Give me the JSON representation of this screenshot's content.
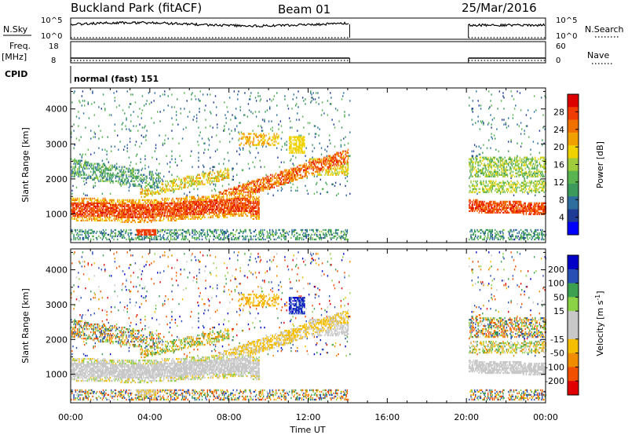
{
  "header": {
    "station_title": "Buckland Park (fitACF)",
    "beam_label": "Beam 01",
    "date_label": "25/Mar/2016"
  },
  "aux_panels": {
    "nsky": {
      "left_label": "N.Sky",
      "right_label": "N.Search",
      "left_ticks": [
        "10^5",
        "10^0"
      ],
      "right_ticks": [
        "10^5",
        "10^0"
      ]
    },
    "freq": {
      "left_label": "Freq.",
      "left_unit": "[MHz]",
      "right_label": "Nave",
      "left_ticks": [
        "18",
        "8"
      ],
      "right_ticks": [
        "60",
        "0"
      ]
    },
    "cpid": {
      "label": "CPID",
      "value": "normal (fast) 151"
    }
  },
  "colors": {
    "power": [
      "#0000ff",
      "#1e3c96",
      "#2e6e9e",
      "#3c9a5c",
      "#5ab450",
      "#a0cc3c",
      "#f0d200",
      "#f0a000",
      "#f07000",
      "#f03c00",
      "#dc0000"
    ],
    "velocity": [
      "#e10000",
      "#f05000",
      "#f08c00",
      "#f5be00",
      "#c8c8c8",
      "#c8c8c8",
      "#8cd246",
      "#3ca050",
      "#2850b4",
      "#0000c8"
    ]
  },
  "chart_data": [
    {
      "type": "heatmap",
      "name": "power",
      "ylabel": "Slant Range [km]",
      "yticks": [
        1000,
        2000,
        3000,
        4000
      ],
      "ylim": [
        180,
        4600
      ],
      "xlim": [
        0,
        24
      ],
      "colorbar": {
        "label": "Power [dB]",
        "range": [
          0,
          32
        ],
        "ticks": [
          4,
          8,
          12,
          16,
          20,
          24,
          28
        ]
      },
      "data_gap": [
        14.1,
        20.1
      ],
      "echo_regions": [
        {
          "desc": "near-range band",
          "t": [
            0,
            14
          ],
          "range": [
            200,
            520
          ],
          "value": 10
        },
        {
          "desc": "main F-region band",
          "t": [
            0,
            9
          ],
          "range": [
            880,
            1400
          ],
          "value": 28
        },
        {
          "desc": "rising band",
          "t": [
            8,
            14
          ],
          "range": [
            1400,
            2700
          ],
          "value": 24
        },
        {
          "desc": "upper scatter",
          "t": [
            0,
            4
          ],
          "range": [
            2000,
            2700
          ],
          "value": 8
        },
        {
          "desc": "evening band",
          "t": [
            20.1,
            24
          ],
          "range": [
            1000,
            1400
          ],
          "value": 26
        }
      ]
    },
    {
      "type": "heatmap",
      "name": "velocity",
      "ylabel": "Slant Range [km]",
      "xlabel": "Time UT",
      "yticks": [
        1000,
        2000,
        3000,
        4000
      ],
      "ylim": [
        180,
        4600
      ],
      "xlim": [
        0,
        24
      ],
      "xticks": [
        0,
        4,
        8,
        12,
        16,
        20,
        24
      ],
      "xtick_labels": [
        "00:00",
        "04:00",
        "08:00",
        "12:00",
        "16:00",
        "20:00",
        "00:00"
      ],
      "colorbar": {
        "label": "Velocity [m s",
        "label_sup": "-1",
        "label_end": "]",
        "range": [
          -250,
          250
        ],
        "ticks": [
          200,
          100,
          50,
          15,
          -15,
          -50,
          -100,
          -200
        ]
      },
      "data_gap": [
        14.1,
        20.1
      ],
      "echo_regions": [
        {
          "desc": "ground scatter band",
          "t": [
            0,
            9
          ],
          "range": [
            880,
            1400
          ],
          "value": 0
        },
        {
          "desc": "rising band",
          "t": [
            8,
            14
          ],
          "range": [
            1400,
            2700
          ],
          "value": -20
        },
        {
          "desc": "blue patch",
          "t": [
            11,
            11.8
          ],
          "range": [
            2700,
            3200
          ],
          "value": 200
        },
        {
          "desc": "evening band",
          "t": [
            20.1,
            24
          ],
          "range": [
            1000,
            1400
          ],
          "value": 0
        }
      ]
    }
  ]
}
